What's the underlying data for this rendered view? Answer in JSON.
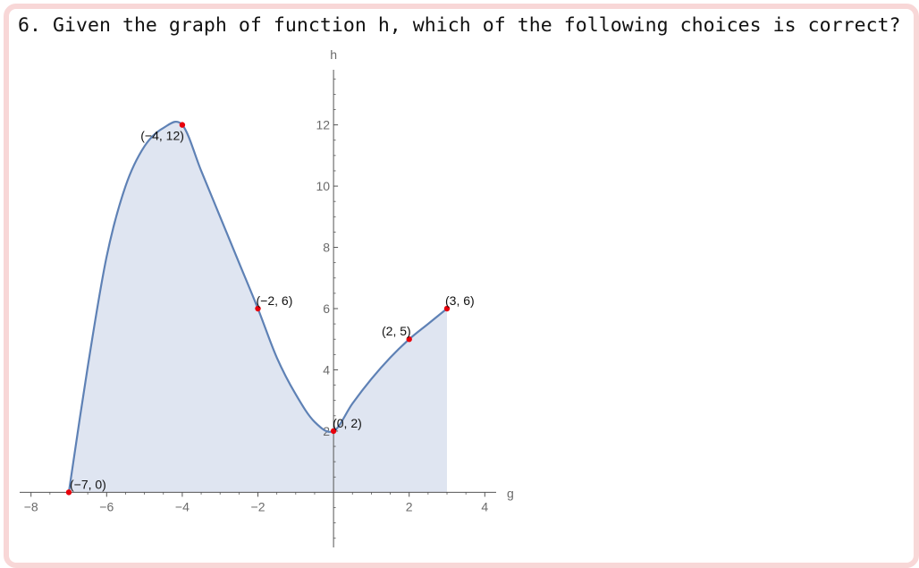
{
  "question": {
    "text": "6. Given the graph of function h, which of the following choices is correct?"
  },
  "colors": {
    "frame": "#f8d7d7",
    "curve": "#5e81b5",
    "fill": "#dfe5f1",
    "points": "#e8000b",
    "axis": "#555555"
  },
  "chart_data": {
    "type": "line",
    "xlabel": "g",
    "ylabel": "h",
    "xlim": [
      -8.3,
      4.3
    ],
    "ylim": [
      -1.8,
      13.8
    ],
    "xticks": [
      -8,
      -6,
      -4,
      -2,
      2,
      4
    ],
    "yticks": [
      2,
      4,
      6,
      8,
      10,
      12
    ],
    "x_tick_labels": [
      "−8",
      "−6",
      "−4",
      "−2",
      "2",
      "4"
    ],
    "y_tick_labels": [
      "2",
      "4",
      "6",
      "8",
      "10",
      "12"
    ],
    "grid": false,
    "shaded_to_axis": true,
    "series": [
      {
        "x": [
          -7,
          -6.5,
          -6,
          -5.5,
          -5,
          -4.5,
          -4,
          -3.5,
          -3,
          -2.5,
          -2,
          -1.5,
          -1,
          -0.5,
          0,
          0.5,
          1,
          1.5,
          2,
          2.5,
          3
        ],
        "y": [
          0,
          4.1,
          7.7,
          10.0,
          11.3,
          11.9,
          12.0,
          10.5,
          9.0,
          7.5,
          6.0,
          4.4,
          3.2,
          2.3,
          2.0,
          2.9,
          3.7,
          4.4,
          5.0,
          5.5,
          6.0
        ]
      }
    ],
    "labeled_points": [
      {
        "x": -7,
        "y": 0,
        "label": "(−7, 0)"
      },
      {
        "x": -4,
        "y": 12,
        "label": "(−4, 12)"
      },
      {
        "x": -2,
        "y": 6,
        "label": "(−2, 6)"
      },
      {
        "x": 0,
        "y": 2,
        "label": "(0, 2)"
      },
      {
        "x": 2,
        "y": 5,
        "label": "(2, 5)"
      },
      {
        "x": 3,
        "y": 6,
        "label": "(3, 6)"
      }
    ]
  }
}
